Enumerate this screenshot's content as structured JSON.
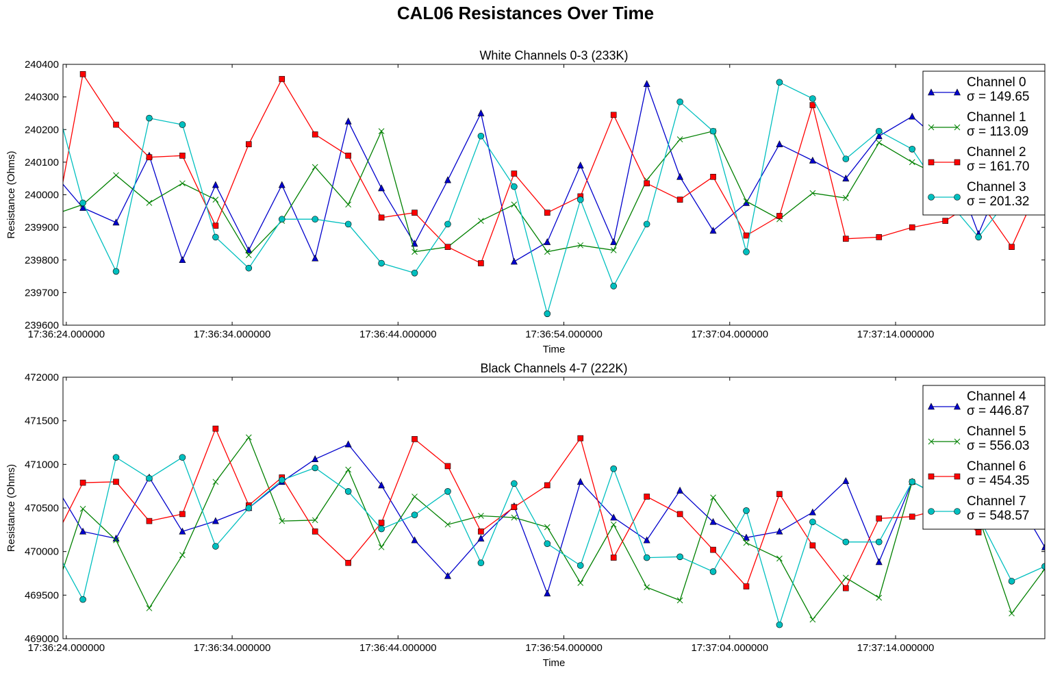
{
  "figure": {
    "suptitle": "CAL06 Resistances Over Time"
  },
  "chart_data": [
    {
      "type": "line",
      "title": "White Channels 0-3 (233K)",
      "xlabel": "Time",
      "ylabel": "Resistance (Ohms)",
      "ylim": [
        239600,
        240400
      ],
      "yticks": [
        239600,
        239700,
        239800,
        239900,
        240000,
        240100,
        240200,
        240300,
        240400
      ],
      "xlim": [
        "17:36:23.800",
        "17:37:23.000"
      ],
      "xticks": [
        "17:36:24.000000",
        "17:36:34.000000",
        "17:36:44.000000",
        "17:36:54.000000",
        "17:37:04.000000",
        "17:37:14.000000"
      ],
      "x": [
        "17:36:23",
        "17:36:25",
        "17:36:27",
        "17:36:29",
        "17:36:31",
        "17:36:33",
        "17:36:35",
        "17:36:37",
        "17:36:39",
        "17:36:41",
        "17:36:43",
        "17:36:45",
        "17:36:47",
        "17:36:49",
        "17:36:51",
        "17:36:53",
        "17:36:55",
        "17:36:57",
        "17:36:59",
        "17:37:01",
        "17:37:03",
        "17:37:05",
        "17:37:07",
        "17:37:09",
        "17:37:11",
        "17:37:13",
        "17:37:15",
        "17:37:17",
        "17:37:19",
        "17:37:21",
        "17:37:23"
      ],
      "legend": "upper right",
      "grid": false,
      "series": [
        {
          "name": "Channel 0",
          "sigma": "σ = 149.65",
          "color": "#0000cc",
          "marker": "triangle",
          "values": [
            240080,
            239960,
            239915,
            240120,
            239800,
            240030,
            239830,
            240030,
            239805,
            240225,
            240020,
            239850,
            240045,
            240250,
            239795,
            239855,
            240090,
            239855,
            240340,
            240055,
            239890,
            239975,
            240155,
            240105,
            240050,
            240180,
            240240,
            240150,
            239880,
            240120,
            240030
          ]
        },
        {
          "name": "Channel 1",
          "sigma": "σ = 113.09",
          "color": "#008000",
          "marker": "x",
          "values": [
            239935,
            239970,
            240060,
            239975,
            240035,
            239985,
            239815,
            239920,
            240085,
            239970,
            240195,
            239825,
            239840,
            239920,
            239970,
            239825,
            239845,
            239830,
            240045,
            240170,
            240195,
            239980,
            239925,
            240005,
            239990,
            240160,
            240100,
            240050,
            239980,
            240130,
            240020
          ]
        },
        {
          "name": "Channel 2",
          "sigma": "σ = 161.70",
          "color": "#ff0000",
          "marker": "square",
          "values": [
            239820,
            240370,
            240215,
            240115,
            240120,
            239905,
            240155,
            240355,
            240185,
            240120,
            239930,
            239945,
            239840,
            239790,
            240065,
            239945,
            239995,
            240245,
            240035,
            239985,
            240055,
            239875,
            239935,
            240275,
            239865,
            239870,
            239900,
            239920,
            239985,
            239840,
            240065
          ]
        },
        {
          "name": "Channel 3",
          "sigma": "σ = 201.32",
          "color": "#00bfbf",
          "marker": "circle",
          "values": [
            240355,
            239975,
            239765,
            240235,
            240215,
            239870,
            239775,
            239925,
            239925,
            239910,
            239790,
            239760,
            239910,
            240180,
            240025,
            239635,
            239985,
            239720,
            239910,
            240285,
            240195,
            239825,
            240345,
            240295,
            240110,
            240195,
            240140,
            239990,
            239870,
            240000,
            240145
          ]
        }
      ]
    },
    {
      "type": "line",
      "title": "Black Channels 4-7 (222K)",
      "xlabel": "Time",
      "ylabel": "Resistance (Ohms)",
      "ylim": [
        469000,
        472000
      ],
      "yticks": [
        469000,
        469500,
        470000,
        470500,
        471000,
        471500,
        472000
      ],
      "xlim": [
        "17:36:23.800",
        "17:37:23.000"
      ],
      "xticks": [
        "17:36:24.000000",
        "17:36:34.000000",
        "17:36:44.000000",
        "17:36:54.000000",
        "17:37:04.000000",
        "17:37:14.000000"
      ],
      "x": [
        "17:36:23",
        "17:36:25",
        "17:36:27",
        "17:36:29",
        "17:36:31",
        "17:36:33",
        "17:36:35",
        "17:36:37",
        "17:36:39",
        "17:36:41",
        "17:36:43",
        "17:36:45",
        "17:36:47",
        "17:36:49",
        "17:36:51",
        "17:36:53",
        "17:36:55",
        "17:36:57",
        "17:36:59",
        "17:37:01",
        "17:37:03",
        "17:37:05",
        "17:37:07",
        "17:37:09",
        "17:37:11",
        "17:37:13",
        "17:37:15",
        "17:37:17",
        "17:37:19",
        "17:37:21",
        "17:37:23"
      ],
      "legend": "upper right",
      "grid": false,
      "series": [
        {
          "name": "Channel 4",
          "sigma": "σ = 446.87",
          "color": "#0000cc",
          "marker": "triangle",
          "values": [
            470870,
            470230,
            470150,
            470850,
            470230,
            470350,
            470500,
            470800,
            471060,
            471230,
            470760,
            470130,
            469720,
            470150,
            470520,
            469520,
            470800,
            470390,
            470130,
            470700,
            470340,
            470160,
            470230,
            470450,
            470810,
            469880,
            470800,
            470600,
            470300,
            470700,
            470050
          ]
        },
        {
          "name": "Channel 5",
          "sigma": "σ = 556.03",
          "color": "#008000",
          "marker": "x",
          "values": [
            469330,
            470490,
            470130,
            469350,
            469960,
            470800,
            471310,
            470350,
            470360,
            470940,
            470050,
            470630,
            470310,
            470410,
            470390,
            470280,
            469640,
            470310,
            469590,
            469440,
            470620,
            470100,
            469920,
            469220,
            469700,
            469470,
            470800,
            470600,
            470400,
            469290,
            469800
          ]
        },
        {
          "name": "Channel 6",
          "sigma": "σ = 454.35",
          "color": "#ff0000",
          "marker": "square",
          "values": [
            470030,
            470790,
            470800,
            470350,
            470430,
            471410,
            470530,
            470850,
            470230,
            469870,
            470330,
            471290,
            470980,
            470230,
            470510,
            470760,
            471300,
            469930,
            470630,
            470430,
            470020,
            469600,
            470660,
            470070,
            469580,
            470380,
            470400,
            470500,
            470220,
            470600,
            470810
          ]
        },
        {
          "name": "Channel 7",
          "sigma": "σ = 548.57",
          "color": "#00bfbf",
          "marker": "circle",
          "values": [
            470150,
            469450,
            471080,
            470840,
            471080,
            470060,
            470500,
            470820,
            470960,
            470690,
            470260,
            470420,
            470690,
            469870,
            470780,
            470090,
            469840,
            470950,
            469930,
            469940,
            469770,
            470470,
            469160,
            470340,
            470110,
            470110,
            470800,
            470600,
            470400,
            469660,
            469830
          ]
        }
      ]
    }
  ]
}
